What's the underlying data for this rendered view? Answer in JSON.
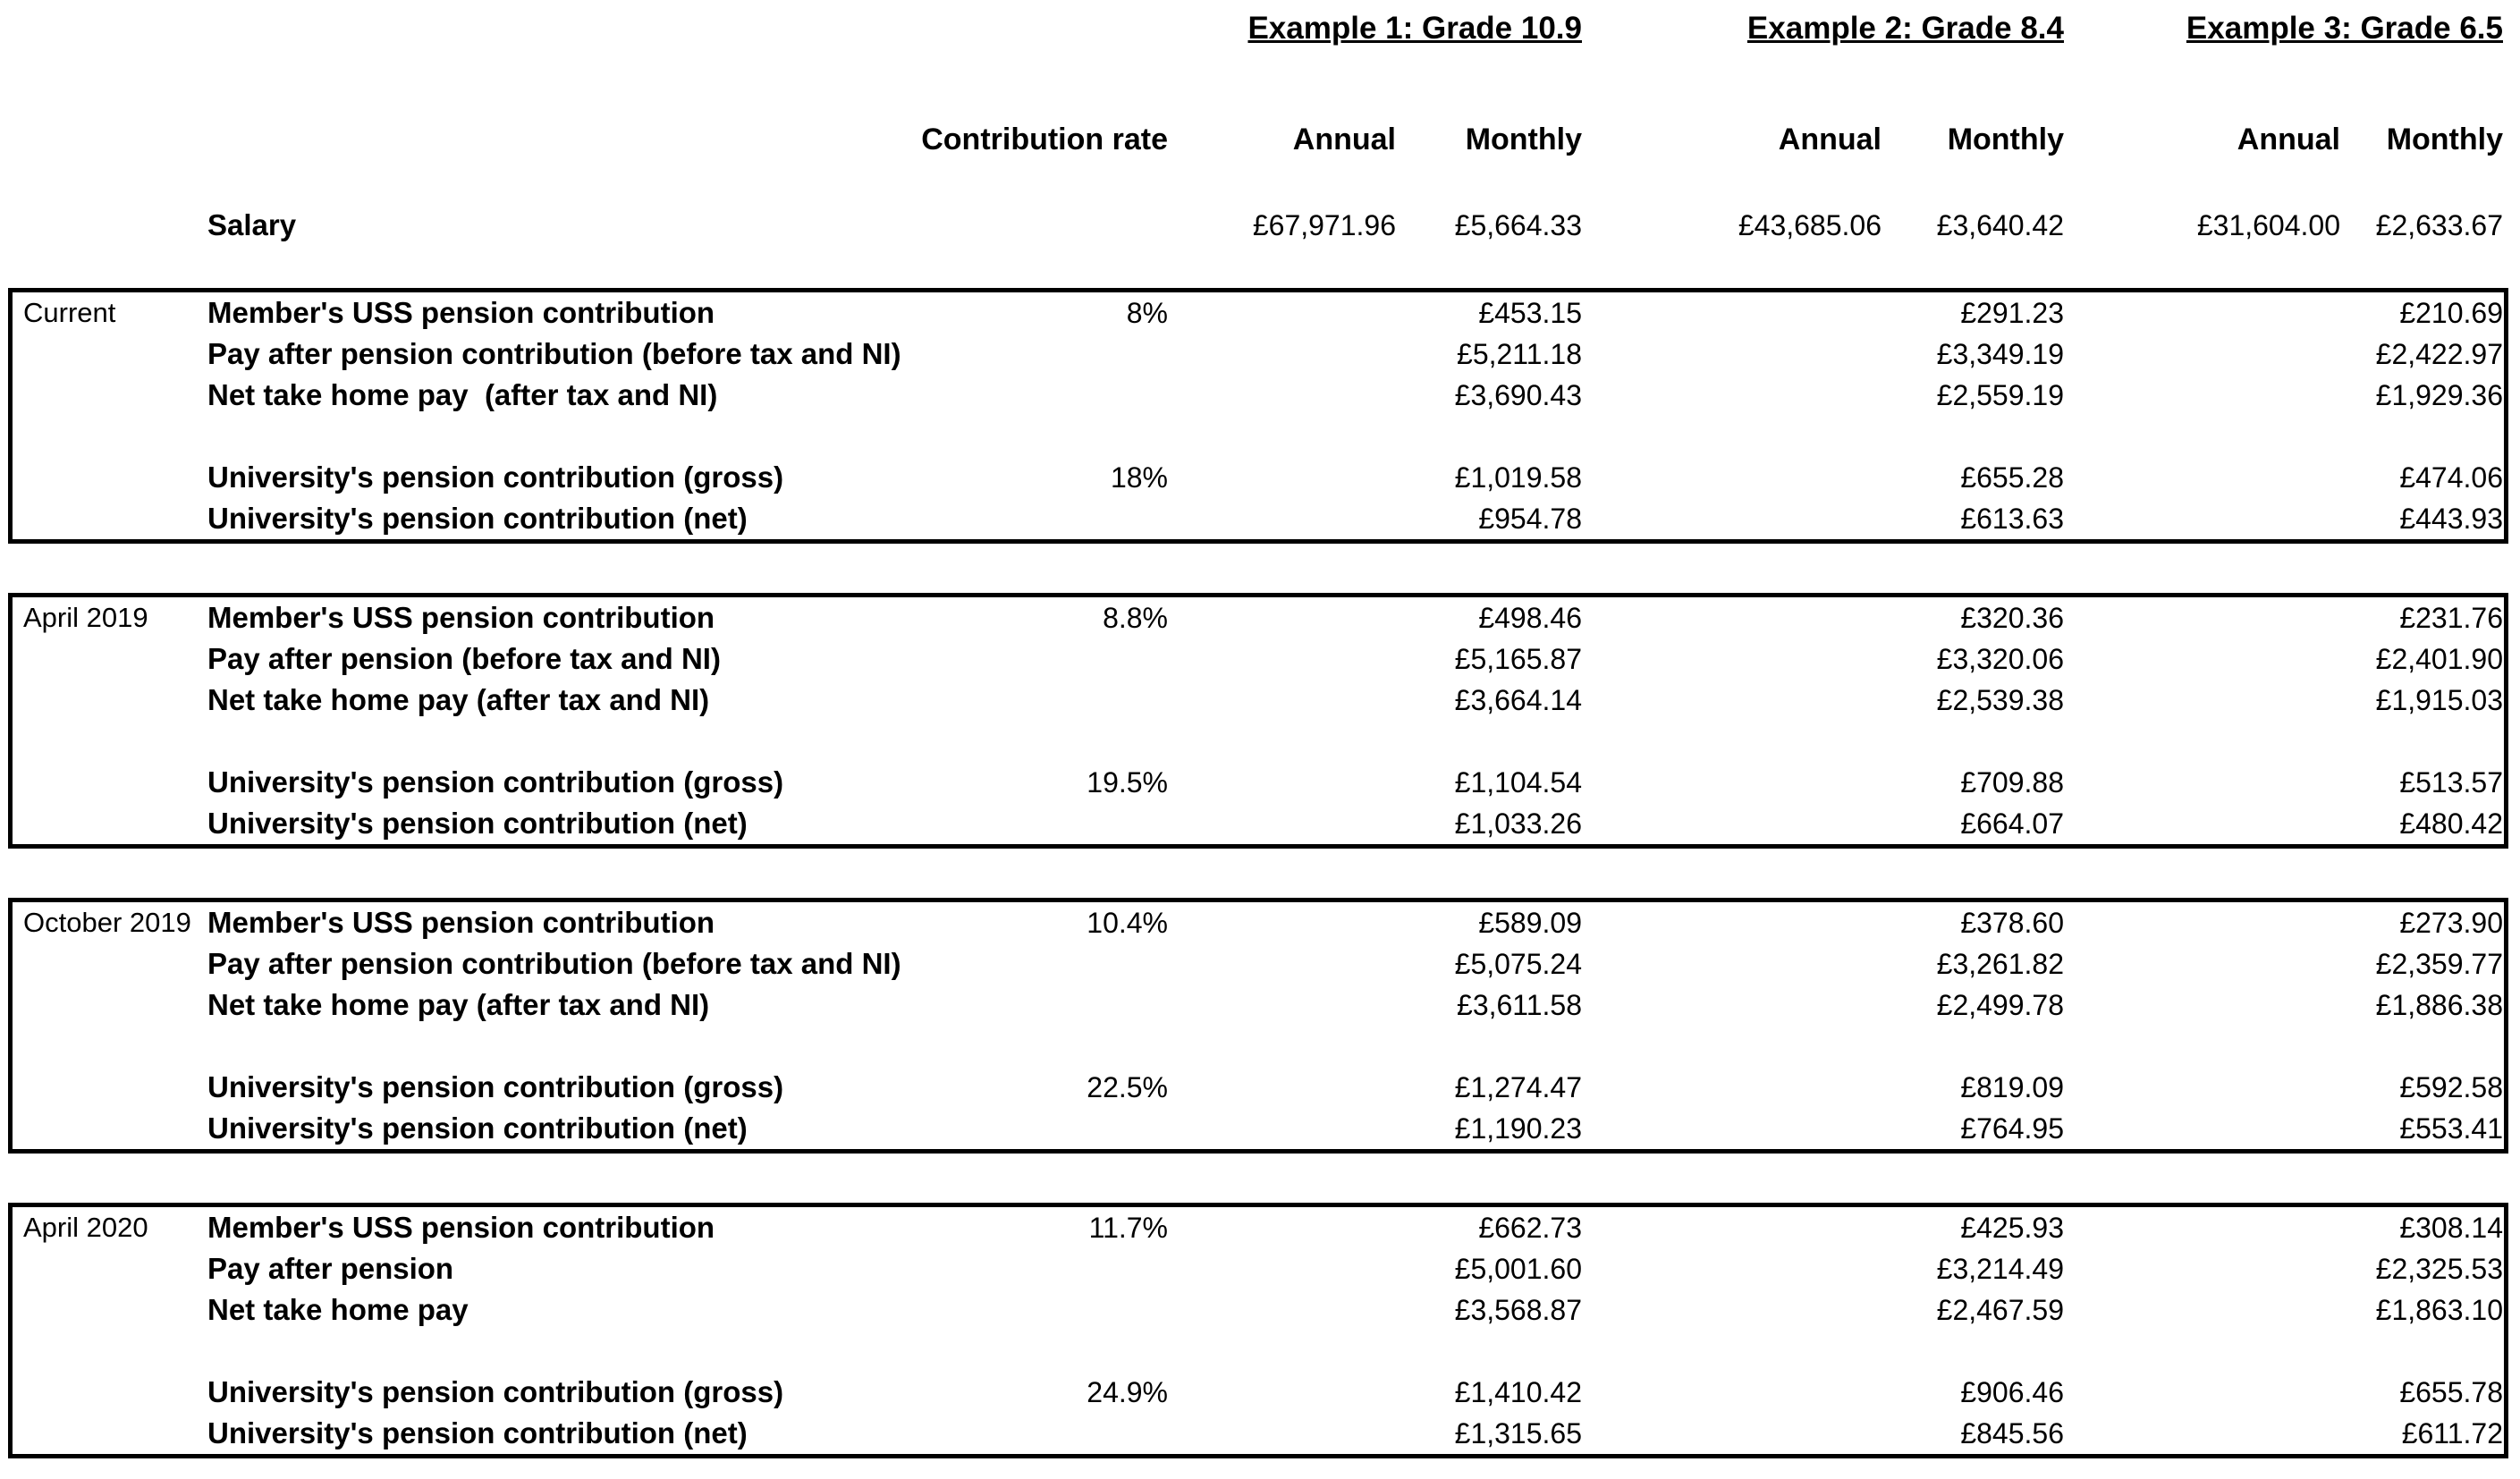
{
  "chart_data": {
    "type": "table",
    "example_headings": [
      "Example 1: Grade 10.9",
      "Example 2: Grade 8.4",
      "Example 3: Grade 6.5"
    ],
    "column_headers": {
      "contribution_rate": "Contribution rate",
      "annual": "Annual",
      "monthly": "Monthly"
    },
    "salary_row": {
      "label": "Salary",
      "ex1_annual": "£67,971.96",
      "ex1_monthly": "£5,664.33",
      "ex2_annual": "£43,685.06",
      "ex2_monthly": "£3,640.42",
      "ex3_annual": "£31,604.00",
      "ex3_monthly": "£2,633.67"
    },
    "sections": [
      {
        "period": "Current",
        "rows": [
          {
            "label": "Member's USS pension contribution",
            "rate": "8%",
            "ex1_monthly": "£453.15",
            "ex2_monthly": "£291.23",
            "ex3_monthly": "£210.69"
          },
          {
            "label": "Pay after pension contribution (before tax and NI)",
            "ex1_monthly": "£5,211.18",
            "ex2_monthly": "£3,349.19",
            "ex3_monthly": "£2,422.97"
          },
          {
            "label": "Net take home pay  (after tax and NI)",
            "ex1_monthly": "£3,690.43",
            "ex2_monthly": "£2,559.19",
            "ex3_monthly": "£1,929.36"
          },
          {
            "label": "University's pension contribution (gross)",
            "rate": "18%",
            "ex1_monthly": "£1,019.58",
            "ex2_monthly": "£655.28",
            "ex3_monthly": "£474.06"
          },
          {
            "label": "University's pension contribution (net)",
            "ex1_monthly": "£954.78",
            "ex2_monthly": "£613.63",
            "ex3_monthly": "£443.93"
          }
        ]
      },
      {
        "period": "April 2019",
        "rows": [
          {
            "label": "Member's USS pension contribution",
            "rate": "8.8%",
            "ex1_monthly": "£498.46",
            "ex2_monthly": "£320.36",
            "ex3_monthly": "£231.76"
          },
          {
            "label": "Pay after pension (before tax and NI)",
            "ex1_monthly": "£5,165.87",
            "ex2_monthly": "£3,320.06",
            "ex3_monthly": "£2,401.90"
          },
          {
            "label": "Net take home pay (after tax and NI)",
            "ex1_monthly": "£3,664.14",
            "ex2_monthly": "£2,539.38",
            "ex3_monthly": "£1,915.03"
          },
          {
            "label": "University's pension contribution (gross)",
            "rate": "19.5%",
            "ex1_monthly": "£1,104.54",
            "ex2_monthly": "£709.88",
            "ex3_monthly": "£513.57"
          },
          {
            "label": "University's pension contribution (net)",
            "ex1_monthly": "£1,033.26",
            "ex2_monthly": "£664.07",
            "ex3_monthly": "£480.42"
          }
        ]
      },
      {
        "period": "October 2019",
        "rows": [
          {
            "label": "Member's USS pension contribution",
            "rate": "10.4%",
            "ex1_monthly": "£589.09",
            "ex2_monthly": "£378.60",
            "ex3_monthly": "£273.90"
          },
          {
            "label": "Pay after pension contribution (before tax and NI)",
            "ex1_monthly": "£5,075.24",
            "ex2_monthly": "£3,261.82",
            "ex3_monthly": "£2,359.77"
          },
          {
            "label": "Net take home pay (after tax and NI)",
            "ex1_monthly": "£3,611.58",
            "ex2_monthly": "£2,499.78",
            "ex3_monthly": "£1,886.38"
          },
          {
            "label": "University's pension contribution (gross)",
            "rate": "22.5%",
            "ex1_monthly": "£1,274.47",
            "ex2_monthly": "£819.09",
            "ex3_monthly": "£592.58"
          },
          {
            "label": "University's pension contribution (net)",
            "ex1_monthly": "£1,190.23",
            "ex2_monthly": "£764.95",
            "ex3_monthly": "£553.41"
          }
        ]
      },
      {
        "period": "April 2020",
        "rows": [
          {
            "label": "Member's USS pension contribution",
            "rate": "11.7%",
            "ex1_monthly": "£662.73",
            "ex2_monthly": "£425.93",
            "ex3_monthly": "£308.14"
          },
          {
            "label": "Pay after pension",
            "ex1_monthly": "£5,001.60",
            "ex2_monthly": "£3,214.49",
            "ex3_monthly": "£2,325.53"
          },
          {
            "label": "Net take home pay",
            "ex1_monthly": "£3,568.87",
            "ex2_monthly": "£2,467.59",
            "ex3_monthly": "£1,863.10"
          },
          {
            "label": "University's pension contribution (gross)",
            "rate": "24.9%",
            "ex1_monthly": "£1,410.42",
            "ex2_monthly": "£906.46",
            "ex3_monthly": "£655.78"
          },
          {
            "label": "University's pension contribution (net)",
            "ex1_monthly": "£1,315.65",
            "ex2_monthly": "£845.56",
            "ex3_monthly": "£611.72"
          }
        ]
      }
    ]
  }
}
